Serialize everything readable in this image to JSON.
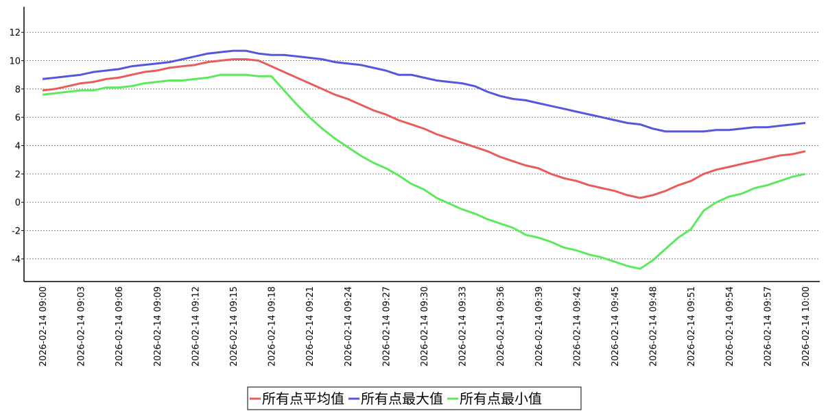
{
  "chart_data": {
    "type": "line",
    "categories": [
      "2026-02-14 09:00",
      null,
      null,
      "2026-02-14 09:03",
      null,
      null,
      "2026-02-14 09:06",
      null,
      null,
      "2026-02-14 09:09",
      null,
      null,
      "2026-02-14 09:12",
      null,
      null,
      "2026-02-14 09:15",
      null,
      null,
      "2026-02-14 09:18",
      null,
      null,
      "2026-02-14 09:21",
      null,
      null,
      "2026-02-14 09:24",
      null,
      null,
      "2026-02-14 09:27",
      null,
      null,
      "2026-02-14 09:30",
      null,
      null,
      "2026-02-14 09:33",
      null,
      null,
      "2026-02-14 09:36",
      null,
      null,
      "2026-02-14 09:39",
      null,
      null,
      "2026-02-14 09:42",
      null,
      null,
      "2026-02-14 09:45",
      null,
      null,
      "2026-02-14 09:48",
      null,
      null,
      "2026-02-14 09:51",
      null,
      null,
      "2026-02-14 09:54",
      null,
      null,
      "2026-02-14 09:57",
      null,
      null,
      "2026-02-14 10:00"
    ],
    "series": [
      {
        "name": "所有点平均值",
        "color": "#e85c5c",
        "values": [
          7.9,
          8.0,
          8.2,
          8.4,
          8.5,
          8.7,
          8.8,
          9.0,
          9.2,
          9.3,
          9.5,
          9.6,
          9.7,
          9.9,
          10.0,
          10.1,
          10.1,
          10.0,
          9.6,
          9.2,
          8.8,
          8.4,
          8.0,
          7.6,
          7.3,
          6.9,
          6.5,
          6.2,
          5.8,
          5.5,
          5.2,
          4.8,
          4.5,
          4.2,
          3.9,
          3.6,
          3.2,
          2.9,
          2.6,
          2.4,
          2.0,
          1.7,
          1.5,
          1.2,
          1.0,
          0.8,
          0.5,
          0.3,
          0.5,
          0.8,
          1.2,
          1.5,
          2.0,
          2.3,
          2.5,
          2.7,
          2.9,
          3.1,
          3.3,
          3.4,
          3.6
        ]
      },
      {
        "name": "所有点最大值",
        "color": "#5555dd",
        "values": [
          8.7,
          8.8,
          8.9,
          9.0,
          9.2,
          9.3,
          9.4,
          9.6,
          9.7,
          9.8,
          9.9,
          10.1,
          10.3,
          10.5,
          10.6,
          10.7,
          10.7,
          10.5,
          10.4,
          10.4,
          10.3,
          10.2,
          10.1,
          9.9,
          9.8,
          9.7,
          9.5,
          9.3,
          9.0,
          9.0,
          8.8,
          8.6,
          8.5,
          8.4,
          8.2,
          7.8,
          7.5,
          7.3,
          7.2,
          7.0,
          6.8,
          6.6,
          6.4,
          6.2,
          6.0,
          5.8,
          5.6,
          5.5,
          5.2,
          5.0,
          5.0,
          5.0,
          5.0,
          5.1,
          5.1,
          5.2,
          5.3,
          5.3,
          5.4,
          5.5,
          5.6
        ]
      },
      {
        "name": "所有点最小值",
        "color": "#5de85d",
        "values": [
          7.6,
          7.7,
          7.8,
          7.9,
          7.9,
          8.1,
          8.1,
          8.2,
          8.4,
          8.5,
          8.6,
          8.6,
          8.7,
          8.8,
          9.0,
          9.0,
          9.0,
          8.9,
          8.9,
          7.9,
          6.9,
          6.0,
          5.2,
          4.5,
          3.9,
          3.3,
          2.8,
          2.4,
          1.9,
          1.3,
          0.9,
          0.3,
          -0.1,
          -0.5,
          -0.8,
          -1.2,
          -1.5,
          -1.8,
          -2.3,
          -2.5,
          -2.8,
          -3.2,
          -3.4,
          -3.7,
          -3.9,
          -4.2,
          -4.5,
          -4.7,
          -4.1,
          -3.3,
          -2.5,
          -1.9,
          -0.6,
          0.0,
          0.4,
          0.6,
          1.0,
          1.2,
          1.5,
          1.8,
          2.0
        ]
      }
    ],
    "ylim": [
      -5.6,
      13.8
    ],
    "yticks": [
      -4,
      -2,
      0,
      2,
      4,
      6,
      8,
      10,
      12
    ],
    "grid": true,
    "legend": "bottom"
  }
}
